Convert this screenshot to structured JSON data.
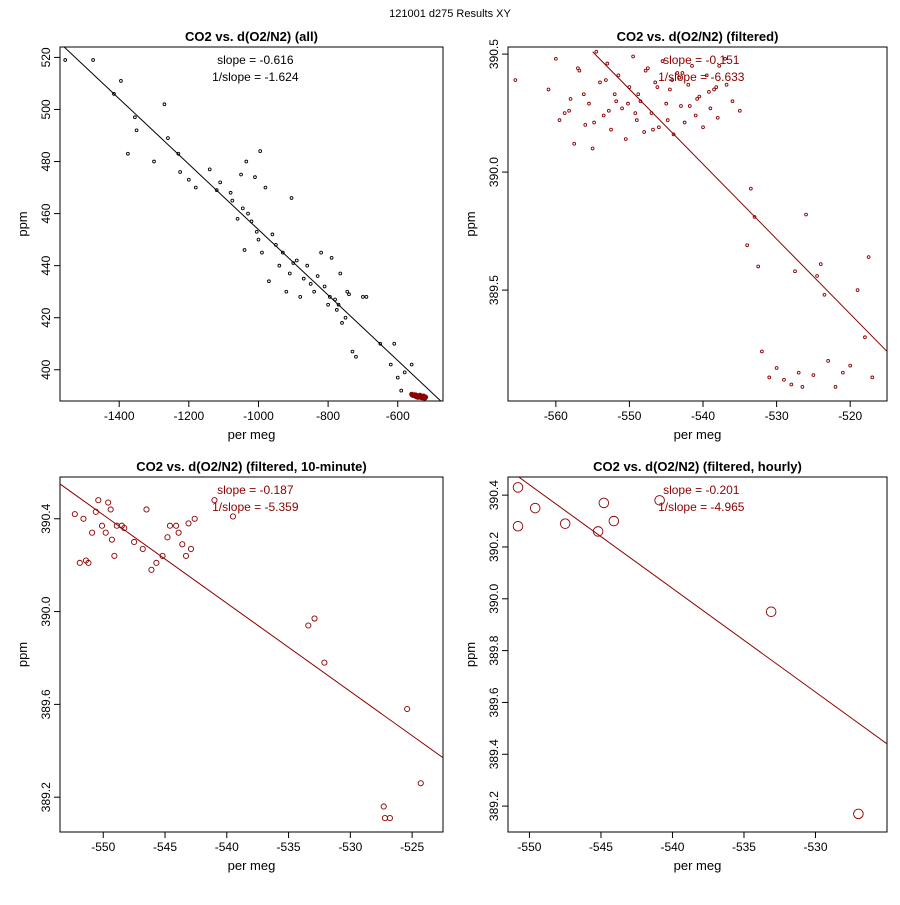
{
  "page_title": "121001   d275   Results XY",
  "chart_data": [
    {
      "type": "scatter",
      "title": "CO2 vs. d(O2/N2) (all)",
      "xlabel": "per meg",
      "ylabel": "ppm",
      "xlim": [
        -1570,
        -470
      ],
      "ylim": [
        388,
        524
      ],
      "xticks": [
        -1400,
        -1200,
        -1000,
        -800,
        -600
      ],
      "xtick_labels": [
        "-1400",
        "-1200",
        "-1000",
        "-800",
        "-600"
      ],
      "yticks": [
        400,
        420,
        440,
        460,
        480,
        500,
        520
      ],
      "ytick_labels": [
        "400",
        "420",
        "440",
        "460",
        "480",
        "500",
        "520"
      ],
      "annotations": [
        "slope = -0.616",
        "1/slope = -1.624"
      ],
      "annotation_color": "#000000",
      "point_color": "#000000",
      "line_color": "#000000",
      "marker_size": 1.4,
      "fit_line": {
        "x": [
          -1570,
          -470
        ],
        "y": [
          525.5,
          387.2
        ]
      },
      "series": [
        {
          "name": "all points",
          "color": "#000000",
          "x": [
            -1555,
            -1475,
            -1415,
            -1395,
            -1375,
            -1355,
            -1350,
            -1300,
            -1270,
            -1260,
            -1230,
            -1225,
            -1200,
            -1180,
            -1140,
            -1120,
            -1110,
            -1080,
            -1075,
            -1060,
            -1050,
            -1045,
            -1040,
            -1035,
            -1030,
            -1020,
            -1010,
            -1005,
            -1000,
            -995,
            -990,
            -980,
            -970,
            -960,
            -950,
            -940,
            -930,
            -920,
            -910,
            -905,
            -900,
            -890,
            -880,
            -870,
            -860,
            -850,
            -840,
            -830,
            -820,
            -810,
            -800,
            -795,
            -790,
            -780,
            -775,
            -770,
            -765,
            -760,
            -750,
            -745,
            -740,
            -730,
            -720,
            -700,
            -690,
            -650,
            -620,
            -610,
            -600,
            -590,
            -580,
            -560,
            -550
          ],
          "y": [
            519,
            519,
            506,
            511,
            483,
            497,
            492,
            480,
            502,
            489,
            483,
            476,
            473,
            470,
            477,
            469,
            472,
            468,
            465,
            458,
            475,
            462,
            446,
            480,
            460,
            457,
            474,
            453,
            450,
            484,
            445,
            470,
            434,
            452,
            448,
            440,
            445,
            430,
            437,
            466,
            441,
            442,
            428,
            435,
            440,
            433,
            430,
            436,
            445,
            432,
            425,
            428,
            443,
            427,
            423,
            425,
            437,
            418,
            420,
            430,
            429,
            407,
            405,
            428,
            428,
            410,
            402,
            410,
            397,
            392,
            399,
            402,
            390
          ]
        },
        {
          "name": "filtered cluster",
          "color": "#8b0000",
          "x": [
            -560,
            -558,
            -555,
            -552,
            -550,
            -548,
            -546,
            -544,
            -542,
            -540,
            -538,
            -536,
            -534,
            -532,
            -530,
            -528,
            -526,
            -524,
            -522,
            -520
          ],
          "y": [
            390.6,
            390.2,
            390.1,
            390.4,
            389.9,
            390.3,
            389.6,
            390.0,
            389.4,
            389.8,
            389.5,
            390.2,
            389.7,
            389.3,
            389.6,
            389.2,
            389.9,
            389.4,
            389.1,
            389.5
          ]
        }
      ]
    },
    {
      "type": "scatter",
      "title": "CO2 vs. d(O2/N2) (filtered)",
      "xlabel": "per meg",
      "ylabel": "ppm",
      "xlim": [
        -566.5,
        -515
      ],
      "ylim": [
        389.03,
        390.53
      ],
      "xticks": [
        -560,
        -550,
        -540,
        -530,
        -520
      ],
      "xtick_labels": [
        "-560",
        "-550",
        "-540",
        "-530",
        "-520"
      ],
      "yticks": [
        389.5,
        390.0,
        390.5
      ],
      "ytick_labels": [
        "389.5",
        "390.0",
        "390.5"
      ],
      "annotations": [
        "slope = -0.151",
        "1/slope = -6.633"
      ],
      "annotation_color": "#8b0000",
      "point_color": "#8b0000",
      "line_color": "#8b0000",
      "marker_size": 1.4,
      "fit_line": {
        "x": [
          -555,
          -515
        ],
        "y": [
          390.51,
          389.24
        ]
      },
      "series": [
        {
          "name": "filtered points",
          "color": "#8b0000",
          "x": [
            -565.5,
            -561,
            -560,
            -559.5,
            -558,
            -557.5,
            -557,
            -556,
            -555.5,
            -555,
            -554.5,
            -554,
            -553.5,
            -553,
            -552.5,
            -552,
            -551.5,
            -551,
            -550.5,
            -550,
            -549.5,
            -549,
            -548.5,
            -548,
            -547.5,
            -547,
            -546.5,
            -546,
            -545.5,
            -545,
            -544.5,
            -544,
            -543.5,
            -543,
            -542.5,
            -542,
            -541.5,
            -541,
            -540.5,
            -540,
            -539.5,
            -539,
            -538.5,
            -538,
            -537,
            -536,
            -535,
            -534,
            -533.5,
            -533,
            -532.5,
            -532,
            -531,
            -530,
            -529,
            -528,
            -527.5,
            -527,
            -526.5,
            -526,
            -525,
            -524.5,
            -524,
            -523.5,
            -523,
            -522,
            -521,
            -520,
            -519,
            -518,
            -517.5,
            -517,
            -558.2,
            -556.2,
            -554.8,
            -553.2,
            -551.8,
            -549.2,
            -547.8,
            -546.2,
            -544.8,
            -543.2,
            -541.8,
            -539.2,
            -537.8,
            -556.8,
            -552.8,
            -548.8,
            -544.2,
            -540.8,
            -536.8,
            -558.8,
            -550.2,
            -546.8,
            -542.8,
            -538.2
          ],
          "y": [
            390.39,
            390.35,
            390.48,
            390.22,
            390.31,
            390.12,
            390.44,
            390.2,
            390.29,
            390.1,
            390.51,
            390.38,
            390.24,
            390.46,
            390.18,
            390.33,
            390.41,
            390.27,
            390.14,
            390.36,
            390.49,
            390.22,
            390.3,
            390.17,
            390.44,
            390.25,
            390.38,
            390.19,
            390.47,
            390.29,
            390.35,
            390.16,
            390.42,
            390.28,
            390.21,
            390.37,
            390.45,
            390.24,
            390.32,
            390.19,
            390.41,
            390.27,
            390.35,
            390.23,
            390.48,
            390.3,
            390.26,
            389.69,
            389.93,
            389.81,
            389.6,
            389.24,
            389.13,
            389.17,
            389.12,
            389.1,
            389.58,
            389.15,
            389.09,
            389.82,
            389.14,
            389.56,
            389.61,
            389.48,
            389.2,
            389.09,
            389.15,
            389.18,
            389.5,
            389.3,
            389.64,
            389.13,
            390.26,
            390.33,
            390.21,
            390.39,
            390.3,
            390.25,
            390.43,
            390.36,
            390.22,
            390.4,
            390.28,
            390.34,
            390.45,
            390.43,
            390.26,
            390.33,
            390.39,
            390.31,
            390.37,
            390.25,
            390.29,
            390.18,
            390.42,
            390.36
          ]
        }
      ]
    },
    {
      "type": "scatter",
      "title": "CO2 vs. d(O2/N2) (filtered, 10-minute)",
      "xlabel": "per meg",
      "ylabel": "ppm",
      "xlim": [
        -553.5,
        -522.5
      ],
      "ylim": [
        389.05,
        390.58
      ],
      "xticks": [
        -550,
        -545,
        -540,
        -535,
        -530,
        -525
      ],
      "xtick_labels": [
        "-550",
        "-545",
        "-540",
        "-535",
        "-530",
        "-525"
      ],
      "yticks": [
        389.2,
        389.6,
        390.0,
        390.4
      ],
      "ytick_labels": [
        "389.2",
        "389.6",
        "390.0",
        "390.4"
      ],
      "annotations": [
        "slope = -0.187",
        "1/slope = -5.359"
      ],
      "annotation_color": "#8b0000",
      "point_color": "#8b0000",
      "line_color": "#8b0000",
      "marker_size": 2.6,
      "fit_line": {
        "x": [
          -553.5,
          -522.5
        ],
        "y": [
          390.55,
          389.37
        ]
      },
      "series": [
        {
          "name": "10-minute means",
          "color": "#8b0000",
          "x": [
            -552.3,
            -551.9,
            -551.6,
            -551.4,
            -551.2,
            -550.9,
            -550.6,
            -550.4,
            -550.1,
            -549.8,
            -549.6,
            -549.4,
            -549.3,
            -549.1,
            -548.9,
            -548.5,
            -548.3,
            -547.5,
            -546.8,
            -546.5,
            -546.1,
            -545.7,
            -545.2,
            -544.8,
            -544.6,
            -544.1,
            -543.9,
            -543.6,
            -543.3,
            -543.1,
            -542.9,
            -542.6,
            -541.0,
            -539.5,
            -533.4,
            -532.9,
            -532.1,
            -527.3,
            -527.2,
            -526.8,
            -525.4,
            -524.3
          ],
          "y": [
            390.42,
            390.21,
            390.4,
            390.22,
            390.21,
            390.34,
            390.43,
            390.48,
            390.37,
            390.34,
            390.47,
            390.44,
            390.31,
            390.24,
            390.37,
            390.37,
            390.36,
            390.3,
            390.27,
            390.44,
            390.18,
            390.21,
            390.24,
            390.32,
            390.37,
            390.37,
            390.34,
            390.29,
            390.24,
            390.38,
            390.27,
            390.4,
            390.48,
            390.41,
            389.94,
            389.97,
            389.78,
            389.16,
            389.11,
            389.11,
            389.58,
            389.26
          ]
        }
      ]
    },
    {
      "type": "scatter",
      "title": "CO2 vs. d(O2/N2) (filtered, hourly)",
      "xlabel": "per meg",
      "ylabel": "ppm",
      "xlim": [
        -551.5,
        -525
      ],
      "ylim": [
        389.1,
        390.47
      ],
      "xticks": [
        -550,
        -545,
        -540,
        -535,
        -530
      ],
      "xtick_labels": [
        "-550",
        "-545",
        "-540",
        "-535",
        "-530"
      ],
      "yticks": [
        389.2,
        389.4,
        389.6,
        389.8,
        390.0,
        390.2,
        390.4
      ],
      "ytick_labels": [
        "389.2",
        "389.4",
        "389.6",
        "389.8",
        "390.0",
        "390.2",
        "390.4"
      ],
      "annotations": [
        "slope = -0.201",
        "1/slope = -4.965"
      ],
      "annotation_color": "#8b0000",
      "point_color": "#8b0000",
      "line_color": "#8b0000",
      "marker_size": 4.8,
      "fit_line": {
        "x": [
          -551.5,
          -525
        ],
        "y": [
          390.5,
          389.44
        ]
      },
      "series": [
        {
          "name": "hourly means",
          "color": "#8b0000",
          "x": [
            -550.8,
            -550.8,
            -549.6,
            -547.5,
            -545.2,
            -544.8,
            -544.1,
            -540.9,
            -533.1,
            -527.0
          ],
          "y": [
            390.43,
            390.28,
            390.35,
            390.29,
            390.26,
            390.37,
            390.3,
            390.38,
            389.95,
            389.17
          ]
        }
      ]
    }
  ]
}
